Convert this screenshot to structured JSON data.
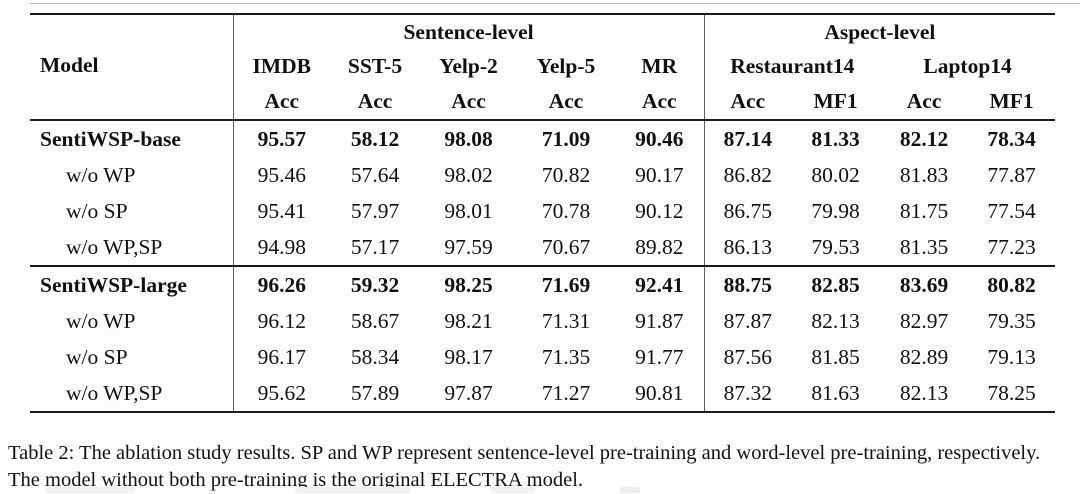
{
  "table": {
    "model_header": "Model",
    "col_groups": [
      {
        "label": "Sentence-level",
        "span": 5
      },
      {
        "label": "Aspect-level",
        "span": 4
      }
    ],
    "dataset_headers": [
      {
        "label": "IMDB",
        "sub": [
          "Acc"
        ]
      },
      {
        "label": "SST-5",
        "sub": [
          "Acc"
        ]
      },
      {
        "label": "Yelp-2",
        "sub": [
          "Acc"
        ]
      },
      {
        "label": "Yelp-5",
        "sub": [
          "Acc"
        ]
      },
      {
        "label": "MR",
        "sub": [
          "Acc"
        ]
      },
      {
        "label": "Restaurant14",
        "sub": [
          "Acc",
          "MF1"
        ]
      },
      {
        "label": "Laptop14",
        "sub": [
          "Acc",
          "MF1"
        ]
      }
    ],
    "groups": [
      {
        "rows": [
          {
            "model": "SentiWSP-base",
            "bold": true,
            "indent": false,
            "values": [
              "95.57",
              "58.12",
              "98.08",
              "71.09",
              "90.46",
              "87.14",
              "81.33",
              "82.12",
              "78.34"
            ]
          },
          {
            "model": "w/o WP",
            "bold": false,
            "indent": true,
            "values": [
              "95.46",
              "57.64",
              "98.02",
              "70.82",
              "90.17",
              "86.82",
              "80.02",
              "81.83",
              "77.87"
            ]
          },
          {
            "model": "w/o SP",
            "bold": false,
            "indent": true,
            "values": [
              "95.41",
              "57.97",
              "98.01",
              "70.78",
              "90.12",
              "86.75",
              "79.98",
              "81.75",
              "77.54"
            ]
          },
          {
            "model": "w/o WP,SP",
            "bold": false,
            "indent": true,
            "values": [
              "94.98",
              "57.17",
              "97.59",
              "70.67",
              "89.82",
              "86.13",
              "79.53",
              "81.35",
              "77.23"
            ]
          }
        ]
      },
      {
        "rows": [
          {
            "model": "SentiWSP-large",
            "bold": true,
            "indent": false,
            "values": [
              "96.26",
              "59.32",
              "98.25",
              "71.69",
              "92.41",
              "88.75",
              "82.85",
              "83.69",
              "80.82"
            ]
          },
          {
            "model": "w/o WP",
            "bold": false,
            "indent": true,
            "values": [
              "96.12",
              "58.67",
              "98.21",
              "71.31",
              "91.87",
              "87.87",
              "82.13",
              "82.97",
              "79.35"
            ]
          },
          {
            "model": "w/o SP",
            "bold": false,
            "indent": true,
            "values": [
              "96.17",
              "58.34",
              "98.17",
              "71.35",
              "91.77",
              "87.56",
              "81.85",
              "82.89",
              "79.13"
            ]
          },
          {
            "model": "w/o WP,SP",
            "bold": false,
            "indent": true,
            "values": [
              "95.62",
              "57.89",
              "97.87",
              "71.27",
              "90.81",
              "87.32",
              "81.63",
              "82.13",
              "78.25"
            ]
          }
        ]
      }
    ]
  },
  "caption": {
    "text": "Table 2: The ablation study results. SP and WP represent sentence-level pre-training and word-level pre-training, respectively. The model without both pre-training is the original ELECTRA model."
  }
}
